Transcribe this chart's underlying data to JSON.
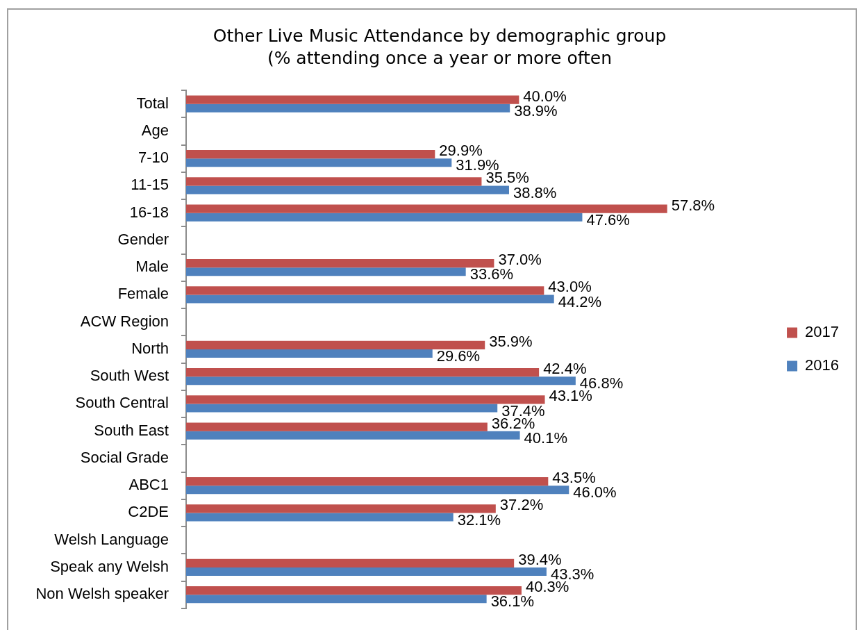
{
  "chart_data": {
    "type": "bar",
    "orientation": "horizontal",
    "title": "Other Live Music Attendance by demographic group",
    "subtitle": "(% attending once a year or more often",
    "categories": [
      "Total",
      "Age",
      "7-10",
      "11-15",
      "16-18",
      "Gender",
      "Male",
      "Female",
      "ACW Region",
      "North",
      "South West",
      "South Central",
      "South East",
      "Social Grade",
      "ABC1",
      "C2DE",
      "Welsh Language",
      "Speak any Welsh",
      "Non Welsh speaker"
    ],
    "series": [
      {
        "name": "2017",
        "color": "#c0504d",
        "values": [
          40.0,
          null,
          29.9,
          35.5,
          57.8,
          null,
          37.0,
          43.0,
          null,
          35.9,
          42.4,
          43.1,
          36.2,
          null,
          43.5,
          37.2,
          null,
          39.4,
          40.3
        ],
        "value_labels": [
          "40.0%",
          null,
          "29.9%",
          "35.5%",
          "57.8%",
          null,
          "37.0%",
          "43.0%",
          null,
          "35.9%",
          "42.4%",
          "43.1%",
          "36.2%",
          null,
          "43.5%",
          "37.2%",
          null,
          "39.4%",
          "40.3%"
        ]
      },
      {
        "name": "2016",
        "color": "#4f81bd",
        "values": [
          38.9,
          null,
          31.9,
          38.8,
          47.6,
          null,
          33.6,
          44.2,
          null,
          29.6,
          46.8,
          37.4,
          40.1,
          null,
          46.0,
          32.1,
          null,
          43.3,
          36.1
        ],
        "value_labels": [
          "38.9%",
          null,
          "31.9%",
          "38.8%",
          "47.6%",
          null,
          "33.6%",
          "44.2%",
          null,
          "29.6%",
          "46.8%",
          "37.4%",
          "40.1%",
          null,
          "46.0%",
          "32.1%",
          null,
          "43.3%",
          "36.1%"
        ]
      }
    ],
    "tick_labels": "y",
    "legend": "right"
  }
}
